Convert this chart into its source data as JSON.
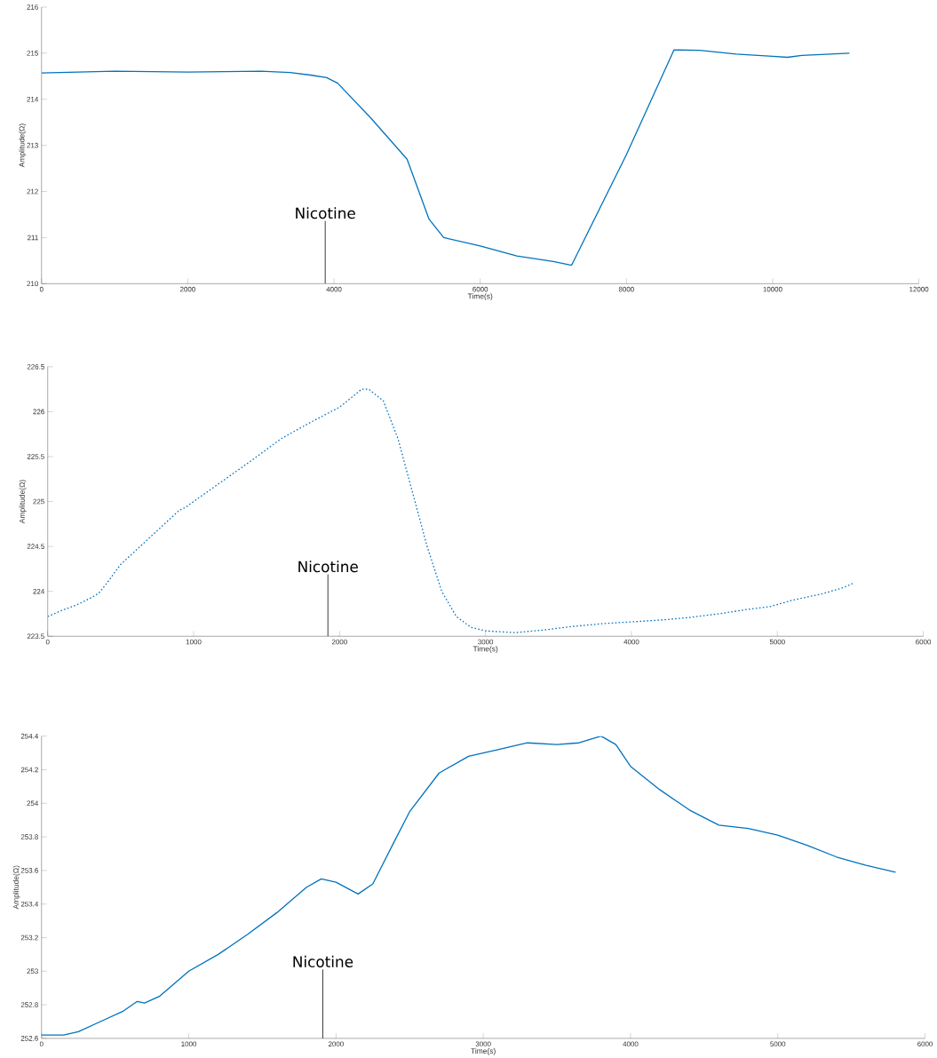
{
  "chart_data": [
    {
      "type": "line",
      "xlabel": "Time(s)",
      "ylabel": "Amplitude(Ω)",
      "color": "#0072bd",
      "line_style": "solid",
      "x": [
        0,
        500,
        1000,
        1500,
        2000,
        2500,
        3000,
        3400,
        3700,
        3900,
        4050,
        4500,
        5000,
        5300,
        5500,
        6000,
        6500,
        7000,
        7250,
        8000,
        8650,
        9000,
        9500,
        10000,
        10200,
        10400,
        11050
      ],
      "values": [
        214.57,
        214.59,
        214.61,
        214.6,
        214.59,
        214.6,
        214.61,
        214.58,
        214.52,
        214.47,
        214.35,
        213.6,
        212.7,
        211.4,
        211.0,
        210.82,
        210.6,
        210.48,
        210.4,
        212.8,
        215.07,
        215.06,
        214.98,
        214.93,
        214.91,
        214.95,
        215.0
      ],
      "xlim": [
        0,
        12000
      ],
      "ylim": [
        210,
        216
      ],
      "xticks": [
        0,
        2000,
        4000,
        6000,
        8000,
        10000,
        12000
      ],
      "yticks": [
        210,
        211,
        212,
        213,
        214,
        215,
        216
      ],
      "ref_lines": [
        {
          "axis": "x",
          "value": 3880,
          "label": "Nicotine"
        }
      ]
    },
    {
      "type": "line",
      "xlabel": "Time(s)",
      "ylabel": "Amplitude(Ω)",
      "color": "#0072bd",
      "line_style": "dotted",
      "x": [
        0,
        100,
        200,
        300,
        350,
        400,
        500,
        700,
        900,
        950,
        1000,
        1200,
        1400,
        1600,
        1800,
        2000,
        2100,
        2150,
        2200,
        2300,
        2400,
        2500,
        2600,
        2700,
        2800,
        2900,
        3000,
        3200,
        3400,
        3600,
        3800,
        4000,
        4200,
        4400,
        4600,
        4800,
        4950,
        5100,
        5300,
        5450,
        5520
      ],
      "values": [
        223.72,
        223.79,
        223.85,
        223.93,
        223.98,
        224.08,
        224.3,
        224.6,
        224.9,
        224.94,
        225.0,
        225.23,
        225.46,
        225.7,
        225.88,
        226.05,
        226.18,
        226.25,
        226.25,
        226.12,
        225.7,
        225.1,
        224.5,
        224.0,
        223.72,
        223.6,
        223.56,
        223.54,
        223.57,
        223.61,
        223.64,
        223.66,
        223.68,
        223.71,
        223.75,
        223.8,
        223.83,
        223.9,
        223.97,
        224.04,
        224.09
      ],
      "xlim": [
        0,
        6000
      ],
      "ylim": [
        223.5,
        226.5
      ],
      "xticks": [
        0,
        1000,
        2000,
        3000,
        4000,
        5000,
        6000
      ],
      "yticks": [
        223.5,
        224,
        224.5,
        225,
        225.5,
        226,
        226.5
      ],
      "ref_lines": [
        {
          "axis": "x",
          "value": 1920,
          "label": "Nicotine"
        }
      ]
    },
    {
      "type": "line",
      "xlabel": "Time(s)",
      "ylabel": "Amplitude(Ω)",
      "color": "#0072bd",
      "line_style": "solid",
      "x": [
        0,
        150,
        250,
        400,
        550,
        650,
        700,
        800,
        1000,
        1200,
        1400,
        1600,
        1800,
        1900,
        2000,
        2150,
        2250,
        2400,
        2500,
        2700,
        2900,
        3100,
        3300,
        3500,
        3650,
        3800,
        3900,
        4000,
        4200,
        4400,
        4600,
        4800,
        5000,
        5200,
        5400,
        5600,
        5800
      ],
      "values": [
        252.62,
        252.62,
        252.64,
        252.7,
        252.76,
        252.82,
        252.81,
        252.85,
        253.0,
        253.1,
        253.22,
        253.35,
        253.5,
        253.55,
        253.53,
        253.46,
        253.52,
        253.78,
        253.95,
        254.18,
        254.28,
        254.32,
        254.36,
        254.35,
        254.36,
        254.4,
        254.35,
        254.22,
        254.08,
        253.96,
        253.87,
        253.85,
        253.81,
        253.75,
        253.68,
        253.63,
        253.59
      ],
      "xlim": [
        0,
        6000
      ],
      "ylim": [
        252.6,
        254.4
      ],
      "xticks": [
        0,
        1000,
        2000,
        3000,
        4000,
        5000,
        6000
      ],
      "yticks": [
        252.6,
        252.8,
        253,
        253.2,
        253.4,
        253.6,
        253.8,
        254,
        254.2,
        254.4
      ],
      "ref_lines": [
        {
          "axis": "x",
          "value": 1910,
          "label": "Nicotine"
        }
      ]
    }
  ]
}
